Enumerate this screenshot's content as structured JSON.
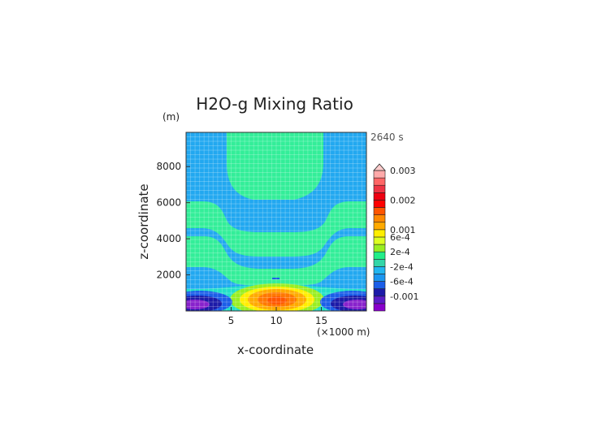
{
  "chart_data": {
    "type": "heatmap",
    "title": "H2O-g Mixing Ratio",
    "time_label": "2640 s",
    "xlabel": "x-coordinate",
    "x_unit": "(×1000 m)",
    "ylabel": "z-coordinate",
    "y_unit": "(m)",
    "xlim": [
      0,
      20
    ],
    "ylim": [
      0,
      9900
    ],
    "x_ticks": [
      5,
      10,
      15
    ],
    "y_ticks": [
      2000,
      4000,
      6000,
      8000
    ],
    "grid": true,
    "colorbar_labels": [
      {
        "text": "0.003",
        "level": 19
      },
      {
        "text": "0.002",
        "level": 15
      },
      {
        "text": "0.001",
        "level": 11
      },
      {
        "text": "6e-4",
        "level": 10
      },
      {
        "text": "2e-4",
        "level": 8
      },
      {
        "text": "-2e-4",
        "level": 6
      },
      {
        "text": "-6e-4",
        "level": 4
      },
      {
        "text": "-0.001",
        "level": 2
      }
    ],
    "colorbar_colors": [
      "#8800cc",
      "#5a1cc8",
      "#1c1aa8",
      "#1b5ee8",
      "#1b96f0",
      "#22b6f0",
      "#33d6a8",
      "#22ee88",
      "#99ee22",
      "#ddff22",
      "#ffee00",
      "#ffaa00",
      "#ff8800",
      "#ff5500",
      "#ff0000",
      "#ee0011",
      "#ee3344",
      "#ff6666",
      "#ffaaaa"
    ],
    "regions": [
      {
        "name": "background",
        "color": "#22a8f0"
      },
      {
        "name": "upper-band",
        "color": "#33ee99"
      },
      {
        "name": "middle-band",
        "color": "#33ee99"
      },
      {
        "name": "lower-band",
        "color": "#33ee99"
      },
      {
        "name": "center-max",
        "color": "#ff7700",
        "value": 0.002
      },
      {
        "name": "side-min",
        "color": "#8822cc",
        "value": -0.001
      }
    ]
  }
}
